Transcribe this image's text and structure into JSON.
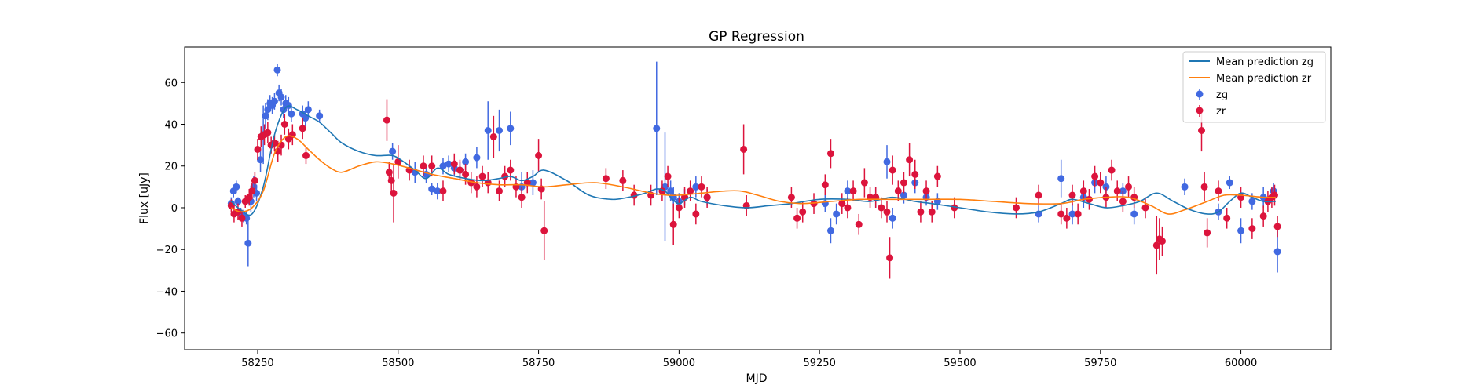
{
  "chart_data": {
    "type": "scatter",
    "title": "GP Regression",
    "xlabel": "MJD",
    "ylabel": "Flux [uJy]",
    "xlim": [
      58120,
      60160
    ],
    "ylim": [
      -68,
      77
    ],
    "xticks": [
      58250,
      58500,
      58750,
      59000,
      59250,
      59500,
      59750,
      60000
    ],
    "yticks": [
      -60,
      -40,
      -20,
      0,
      20,
      40,
      60
    ],
    "legend_position": "top-right",
    "grid": false,
    "colors": {
      "zg_mean": "#1f77b4",
      "zr_mean": "#ff7f0e",
      "zg_points": "#4169e1",
      "zr_points": "#dc143c"
    },
    "series": [
      {
        "name": "Mean prediction zg",
        "kind": "line",
        "color": "#1f77b4",
        "x": [
          58203,
          58220,
          58240,
          58260,
          58280,
          58300,
          58320,
          58340,
          58360,
          58380,
          58400,
          58430,
          58460,
          58490,
          58510,
          58530,
          58550,
          58570,
          58590,
          58620,
          58650,
          58680,
          58700,
          58720,
          58740,
          58760,
          58800,
          58840,
          58880,
          58910,
          58940,
          58960,
          58975,
          58985,
          59000,
          59020,
          59040,
          59080,
          59120,
          59160,
          59200,
          59250,
          59300,
          59340,
          59380,
          59420,
          59450,
          59500,
          59550,
          59600,
          59640,
          59680,
          59700,
          59730,
          59760,
          59790,
          59820,
          59850,
          59880,
          59910,
          59940,
          59960,
          59980,
          60000,
          60020,
          60040,
          60062
        ],
        "y": [
          3,
          -1,
          -3,
          10,
          35,
          48,
          47,
          44,
          41,
          36,
          31,
          27,
          25,
          25,
          22,
          18,
          14,
          19,
          16,
          14,
          13,
          14,
          15,
          13,
          15,
          18,
          13,
          6,
          4,
          5,
          7,
          9,
          8,
          5,
          2,
          5,
          3,
          1,
          0,
          1,
          2,
          4,
          4,
          3,
          5,
          3,
          2,
          0,
          -2,
          -3,
          -2,
          2,
          4,
          2,
          0,
          1,
          3,
          7,
          3,
          -1,
          -3,
          -2,
          3,
          7,
          5,
          3,
          3
        ]
      },
      {
        "name": "Mean prediction zr",
        "kind": "line",
        "color": "#ff7f0e",
        "x": [
          58203,
          58220,
          58240,
          58260,
          58280,
          58300,
          58320,
          58340,
          58360,
          58380,
          58400,
          58430,
          58460,
          58490,
          58520,
          58560,
          58600,
          58640,
          58680,
          58720,
          58760,
          58800,
          58850,
          58900,
          58950,
          58980,
          59000,
          59040,
          59080,
          59110,
          59140,
          59180,
          59220,
          59270,
          59320,
          59380,
          59440,
          59500,
          59560,
          59620,
          59680,
          59720,
          59760,
          59800,
          59840,
          59870,
          59900,
          59940,
          59970,
          60000,
          60040,
          60062
        ],
        "y": [
          0,
          -2,
          0,
          8,
          26,
          34,
          33,
          28,
          23,
          19,
          17,
          20,
          22,
          21,
          19,
          16,
          14,
          12,
          11,
          11,
          10,
          11,
          12,
          10,
          7,
          6,
          6,
          7,
          8,
          8,
          6,
          3,
          2,
          3,
          4,
          4,
          4,
          4,
          3,
          2,
          2,
          4,
          5,
          5,
          1,
          -3,
          -1,
          3,
          6,
          6,
          5,
          5
        ]
      },
      {
        "name": "zg",
        "kind": "errorbar",
        "color": "#4169e1",
        "x": [
          58203,
          58207,
          58212,
          58215,
          58220,
          58225,
          58230,
          58233,
          58238,
          58243,
          58248,
          58255,
          58260,
          58264,
          58268,
          58272,
          58276,
          58280,
          58285,
          58288,
          58292,
          58296,
          58300,
          58305,
          58310,
          58330,
          58335,
          58340,
          58360,
          58490,
          58530,
          58550,
          58560,
          58570,
          58580,
          58590,
          58600,
          58610,
          58620,
          58640,
          58660,
          58680,
          58700,
          58720,
          58740,
          58960,
          58975,
          58985,
          58990,
          59000,
          59010,
          59030,
          59050,
          59260,
          59270,
          59280,
          59300,
          59350,
          59370,
          59380,
          59400,
          59420,
          59440,
          59460,
          59640,
          59680,
          59700,
          59720,
          59740,
          59760,
          59790,
          59810,
          59900,
          59960,
          59980,
          60000,
          60020,
          60040,
          60058,
          60065
        ],
        "y": [
          2,
          8,
          10,
          3,
          -3,
          -4,
          -5,
          -17,
          3,
          10,
          7,
          23,
          35,
          44,
          47,
          50,
          49,
          51,
          66,
          55,
          53,
          47,
          50,
          49,
          45,
          45,
          43,
          47,
          44,
          27,
          17,
          16,
          9,
          8,
          20,
          21,
          19,
          18,
          22,
          24,
          37,
          37,
          38,
          10,
          12,
          38,
          10,
          8,
          5,
          3,
          5,
          10,
          5,
          2,
          -11,
          -3,
          8,
          5,
          22,
          -5,
          6,
          12,
          5,
          3,
          -3,
          14,
          -3,
          5,
          12,
          10,
          8,
          -3,
          10,
          -2,
          12,
          -11,
          3,
          5,
          8,
          -21
        ],
        "err": [
          3,
          3,
          3,
          2,
          3,
          3,
          3,
          11,
          5,
          5,
          4,
          6,
          14,
          6,
          5,
          4,
          4,
          4,
          3,
          4,
          4,
          4,
          4,
          4,
          4,
          4,
          4,
          4,
          3,
          4,
          5,
          4,
          3,
          4,
          4,
          4,
          4,
          4,
          4,
          5,
          14,
          10,
          8,
          7,
          6,
          32,
          26,
          5,
          5,
          4,
          4,
          5,
          4,
          4,
          6,
          5,
          5,
          5,
          8,
          5,
          4,
          5,
          4,
          4,
          4,
          9,
          5,
          5,
          5,
          5,
          4,
          5,
          4,
          4,
          3,
          6,
          4,
          5,
          4,
          10
        ]
      },
      {
        "name": "zr",
        "kind": "errorbar",
        "color": "#dc143c",
        "x": [
          58203,
          58208,
          58215,
          58222,
          58228,
          58235,
          58240,
          58245,
          58250,
          58256,
          58262,
          58268,
          58274,
          58280,
          58286,
          58292,
          58298,
          58305,
          58312,
          58330,
          58336,
          58480,
          58484,
          58488,
          58492,
          58500,
          58520,
          58545,
          58560,
          58580,
          58600,
          58610,
          58620,
          58630,
          58640,
          58650,
          58660,
          58670,
          58680,
          58690,
          58700,
          58710,
          58720,
          58730,
          58750,
          58755,
          58760,
          58870,
          58900,
          58920,
          58950,
          58970,
          58980,
          58990,
          59000,
          59010,
          59020,
          59030,
          59040,
          59050,
          59115,
          59120,
          59200,
          59210,
          59220,
          59240,
          59260,
          59270,
          59290,
          59300,
          59310,
          59320,
          59330,
          59340,
          59350,
          59360,
          59370,
          59375,
          59380,
          59390,
          59400,
          59410,
          59420,
          59430,
          59440,
          59450,
          59460,
          59490,
          59600,
          59640,
          59680,
          59690,
          59700,
          59710,
          59720,
          59730,
          59740,
          59750,
          59760,
          59770,
          59780,
          59790,
          59800,
          59810,
          59830,
          59850,
          59855,
          59860,
          59930,
          59935,
          59940,
          59960,
          59975,
          60000,
          60020,
          60040,
          60048,
          60055,
          60060,
          60065
        ],
        "y": [
          1,
          -3,
          -2,
          -5,
          3,
          5,
          8,
          13,
          28,
          34,
          35,
          36,
          30,
          31,
          27,
          30,
          40,
          33,
          35,
          38,
          25,
          42,
          17,
          13,
          7,
          22,
          18,
          20,
          20,
          8,
          21,
          18,
          16,
          12,
          10,
          15,
          12,
          34,
          8,
          15,
          18,
          10,
          5,
          12,
          25,
          9,
          -11,
          14,
          13,
          6,
          6,
          8,
          15,
          -8,
          0,
          5,
          8,
          -3,
          10,
          5,
          28,
          1,
          5,
          -5,
          -2,
          2,
          11,
          26,
          2,
          0,
          8,
          -8,
          12,
          5,
          5,
          0,
          -2,
          -24,
          18,
          8,
          12,
          23,
          16,
          -2,
          8,
          -2,
          15,
          0,
          0,
          6,
          -3,
          -5,
          6,
          -3,
          8,
          4,
          15,
          12,
          5,
          18,
          8,
          3,
          10,
          5,
          0,
          -18,
          -15,
          -16,
          37,
          10,
          -12,
          8,
          -5,
          5,
          -10,
          -4,
          3,
          5,
          6,
          -9
        ],
        "err": [
          3,
          4,
          4,
          4,
          3,
          4,
          4,
          4,
          5,
          5,
          5,
          5,
          4,
          4,
          5,
          5,
          5,
          5,
          5,
          5,
          4,
          10,
          5,
          5,
          14,
          8,
          5,
          5,
          5,
          5,
          5,
          5,
          5,
          5,
          5,
          5,
          5,
          10,
          5,
          5,
          5,
          5,
          5,
          5,
          8,
          5,
          14,
          5,
          5,
          5,
          5,
          5,
          5,
          10,
          5,
          5,
          5,
          5,
          5,
          5,
          12,
          5,
          5,
          5,
          5,
          5,
          5,
          7,
          5,
          5,
          5,
          5,
          7,
          5,
          5,
          5,
          5,
          10,
          7,
          5,
          5,
          8,
          7,
          5,
          5,
          5,
          5,
          5,
          5,
          5,
          5,
          5,
          5,
          5,
          5,
          5,
          5,
          5,
          5,
          5,
          5,
          5,
          5,
          5,
          5,
          14,
          10,
          7,
          10,
          7,
          7,
          5,
          5,
          5,
          5,
          5,
          5,
          5,
          5,
          5
        ]
      }
    ]
  }
}
